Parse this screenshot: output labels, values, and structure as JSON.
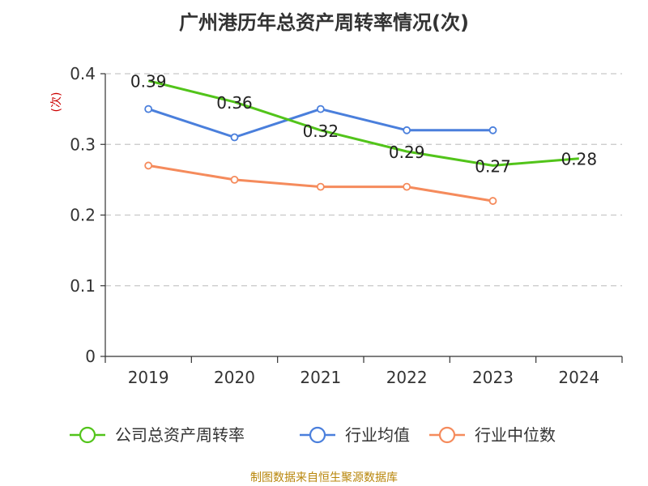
{
  "chart_data": {
    "type": "line",
    "title": "广州港历年总资产周转率情况(次)",
    "ylabel": "(次)",
    "xlabel": "",
    "categories": [
      "2019",
      "2020",
      "2021",
      "2022",
      "2023",
      "2024"
    ],
    "ylim": [
      0,
      0.4
    ],
    "yticks": [
      "0",
      "0.1",
      "0.2",
      "0.3",
      "0.4"
    ],
    "ytick_values": [
      0,
      0.1,
      0.2,
      0.3,
      0.4
    ],
    "grid": true,
    "legend_position": "bottom",
    "series": [
      {
        "name": "公司总资产周转率",
        "color": "#52c41a",
        "values": [
          0.39,
          0.36,
          0.32,
          0.29,
          0.27,
          0.28
        ],
        "labels": [
          "0.39",
          "0.36",
          "0.32",
          "0.29",
          "0.27",
          "0.28"
        ],
        "markers": false
      },
      {
        "name": "行业均值",
        "color": "#4a7fdc",
        "values": [
          0.35,
          0.31,
          0.35,
          0.32,
          0.32,
          null
        ],
        "markers": true
      },
      {
        "name": "行业中位数",
        "color": "#f58b5c",
        "values": [
          0.27,
          0.25,
          0.24,
          0.24,
          0.22,
          null
        ],
        "markers": true
      }
    ]
  },
  "source": "制图数据来自恒生聚源数据库"
}
